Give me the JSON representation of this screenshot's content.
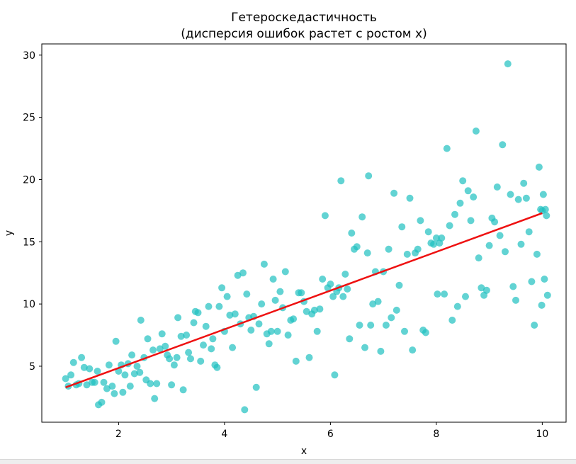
{
  "chart_data": {
    "type": "scatter",
    "title_line1": "Гетероскедастичность",
    "title_line2": "(дисперсия ошибок растет с ростом x)",
    "xlabel": "x",
    "ylabel": "y",
    "xlim": [
      0.55,
      10.45
    ],
    "ylim": [
      0.5,
      30.9
    ],
    "xticks": [
      2,
      4,
      6,
      8,
      10
    ],
    "yticks": [
      5,
      10,
      15,
      20,
      25,
      30
    ],
    "grid": false,
    "colors": {
      "points": "#20c0c0",
      "fit_line": "#ee1111"
    },
    "fit_line": {
      "x": [
        1.0,
        10.0
      ],
      "y": [
        3.3,
        17.3
      ]
    },
    "points": [
      [
        1.0,
        4.0
      ],
      [
        1.05,
        3.4
      ],
      [
        1.1,
        4.3
      ],
      [
        1.15,
        5.3
      ],
      [
        1.2,
        3.5
      ],
      [
        1.25,
        3.6
      ],
      [
        1.3,
        5.7
      ],
      [
        1.35,
        4.9
      ],
      [
        1.4,
        3.5
      ],
      [
        1.45,
        4.8
      ],
      [
        1.5,
        3.7
      ],
      [
        1.55,
        3.7
      ],
      [
        1.6,
        4.6
      ],
      [
        1.62,
        1.9
      ],
      [
        1.68,
        2.1
      ],
      [
        1.72,
        3.7
      ],
      [
        1.78,
        3.2
      ],
      [
        1.82,
        5.1
      ],
      [
        1.88,
        3.4
      ],
      [
        1.92,
        2.8
      ],
      [
        1.95,
        7.0
      ],
      [
        2.0,
        4.6
      ],
      [
        2.05,
        5.1
      ],
      [
        2.08,
        2.9
      ],
      [
        2.12,
        4.3
      ],
      [
        2.18,
        5.2
      ],
      [
        2.22,
        3.4
      ],
      [
        2.25,
        5.9
      ],
      [
        2.3,
        4.4
      ],
      [
        2.35,
        5.0
      ],
      [
        2.4,
        4.5
      ],
      [
        2.42,
        8.7
      ],
      [
        2.48,
        5.7
      ],
      [
        2.52,
        3.9
      ],
      [
        2.55,
        7.2
      ],
      [
        2.6,
        3.6
      ],
      [
        2.65,
        6.3
      ],
      [
        2.68,
        2.4
      ],
      [
        2.72,
        3.6
      ],
      [
        2.78,
        6.4
      ],
      [
        2.82,
        7.6
      ],
      [
        2.88,
        6.6
      ],
      [
        2.92,
        5.9
      ],
      [
        2.96,
        5.6
      ],
      [
        3.0,
        3.5
      ],
      [
        3.05,
        5.1
      ],
      [
        3.1,
        5.7
      ],
      [
        3.12,
        8.9
      ],
      [
        3.18,
        7.4
      ],
      [
        3.22,
        3.1
      ],
      [
        3.28,
        7.5
      ],
      [
        3.32,
        6.1
      ],
      [
        3.36,
        5.6
      ],
      [
        3.42,
        8.5
      ],
      [
        3.45,
        9.4
      ],
      [
        3.5,
        9.3
      ],
      [
        3.55,
        5.4
      ],
      [
        3.6,
        6.7
      ],
      [
        3.65,
        8.2
      ],
      [
        3.7,
        9.8
      ],
      [
        3.75,
        6.4
      ],
      [
        3.78,
        7.2
      ],
      [
        3.82,
        5.1
      ],
      [
        3.86,
        4.9
      ],
      [
        3.9,
        9.8
      ],
      [
        3.95,
        11.3
      ],
      [
        4.0,
        7.8
      ],
      [
        4.05,
        10.6
      ],
      [
        4.1,
        9.1
      ],
      [
        4.15,
        6.5
      ],
      [
        4.2,
        9.2
      ],
      [
        4.25,
        12.3
      ],
      [
        4.3,
        8.4
      ],
      [
        4.35,
        12.5
      ],
      [
        4.38,
        1.5
      ],
      [
        4.42,
        10.8
      ],
      [
        4.46,
        8.9
      ],
      [
        4.5,
        7.9
      ],
      [
        4.55,
        9.0
      ],
      [
        4.6,
        3.3
      ],
      [
        4.65,
        8.4
      ],
      [
        4.7,
        10.0
      ],
      [
        4.75,
        13.2
      ],
      [
        4.8,
        7.6
      ],
      [
        4.84,
        6.8
      ],
      [
        4.88,
        7.8
      ],
      [
        4.92,
        12.0
      ],
      [
        4.96,
        10.3
      ],
      [
        5.0,
        7.8
      ],
      [
        5.05,
        11.0
      ],
      [
        5.1,
        9.7
      ],
      [
        5.15,
        12.6
      ],
      [
        5.2,
        7.5
      ],
      [
        5.25,
        8.7
      ],
      [
        5.3,
        8.8
      ],
      [
        5.35,
        5.4
      ],
      [
        5.4,
        10.9
      ],
      [
        5.45,
        10.9
      ],
      [
        5.5,
        10.2
      ],
      [
        5.55,
        9.4
      ],
      [
        5.6,
        5.7
      ],
      [
        5.65,
        9.2
      ],
      [
        5.7,
        9.5
      ],
      [
        5.75,
        7.8
      ],
      [
        5.8,
        9.6
      ],
      [
        5.85,
        12.0
      ],
      [
        5.9,
        17.1
      ],
      [
        5.95,
        11.3
      ],
      [
        6.0,
        11.6
      ],
      [
        6.05,
        10.6
      ],
      [
        6.08,
        4.3
      ],
      [
        6.12,
        11.0
      ],
      [
        6.16,
        11.3
      ],
      [
        6.2,
        19.9
      ],
      [
        6.24,
        10.6
      ],
      [
        6.28,
        12.4
      ],
      [
        6.32,
        11.2
      ],
      [
        6.36,
        7.2
      ],
      [
        6.4,
        15.7
      ],
      [
        6.45,
        14.4
      ],
      [
        6.5,
        14.6
      ],
      [
        6.55,
        8.3
      ],
      [
        6.6,
        17.0
      ],
      [
        6.65,
        6.5
      ],
      [
        6.7,
        14.1
      ],
      [
        6.72,
        20.3
      ],
      [
        6.76,
        8.3
      ],
      [
        6.8,
        10.0
      ],
      [
        6.85,
        12.6
      ],
      [
        6.9,
        10.2
      ],
      [
        6.95,
        6.2
      ],
      [
        7.0,
        12.6
      ],
      [
        7.05,
        8.3
      ],
      [
        7.1,
        14.4
      ],
      [
        7.15,
        8.9
      ],
      [
        7.2,
        18.9
      ],
      [
        7.25,
        9.5
      ],
      [
        7.3,
        11.5
      ],
      [
        7.35,
        16.2
      ],
      [
        7.4,
        7.8
      ],
      [
        7.45,
        14.0
      ],
      [
        7.5,
        18.5
      ],
      [
        7.55,
        6.3
      ],
      [
        7.6,
        14.1
      ],
      [
        7.65,
        14.4
      ],
      [
        7.7,
        16.7
      ],
      [
        7.75,
        7.9
      ],
      [
        7.8,
        7.7
      ],
      [
        7.85,
        15.8
      ],
      [
        7.9,
        14.9
      ],
      [
        7.95,
        14.8
      ],
      [
        8.0,
        15.3
      ],
      [
        8.02,
        10.8
      ],
      [
        8.06,
        14.9
      ],
      [
        8.1,
        15.3
      ],
      [
        8.15,
        10.8
      ],
      [
        8.2,
        22.5
      ],
      [
        8.25,
        16.3
      ],
      [
        8.3,
        8.7
      ],
      [
        8.35,
        17.2
      ],
      [
        8.4,
        9.8
      ],
      [
        8.45,
        18.1
      ],
      [
        8.5,
        19.9
      ],
      [
        8.55,
        10.6
      ],
      [
        8.6,
        19.1
      ],
      [
        8.65,
        16.7
      ],
      [
        8.7,
        18.6
      ],
      [
        8.75,
        23.9
      ],
      [
        8.8,
        13.7
      ],
      [
        8.85,
        11.3
      ],
      [
        8.9,
        10.7
      ],
      [
        8.95,
        11.1
      ],
      [
        9.0,
        14.7
      ],
      [
        9.05,
        16.9
      ],
      [
        9.1,
        16.6
      ],
      [
        9.15,
        19.4
      ],
      [
        9.2,
        15.5
      ],
      [
        9.25,
        22.8
      ],
      [
        9.3,
        14.2
      ],
      [
        9.35,
        29.3
      ],
      [
        9.4,
        18.8
      ],
      [
        9.45,
        11.4
      ],
      [
        9.5,
        10.3
      ],
      [
        9.55,
        18.4
      ],
      [
        9.6,
        14.8
      ],
      [
        9.65,
        19.7
      ],
      [
        9.7,
        18.5
      ],
      [
        9.75,
        15.8
      ],
      [
        9.8,
        11.8
      ],
      [
        9.85,
        8.3
      ],
      [
        9.9,
        14.0
      ],
      [
        9.94,
        21.0
      ],
      [
        9.97,
        17.6
      ],
      [
        9.99,
        9.9
      ],
      [
        10.0,
        17.5
      ],
      [
        10.02,
        18.8
      ],
      [
        10.04,
        12.0
      ],
      [
        10.06,
        17.6
      ],
      [
        10.08,
        17.1
      ],
      [
        10.1,
        10.7
      ]
    ]
  }
}
